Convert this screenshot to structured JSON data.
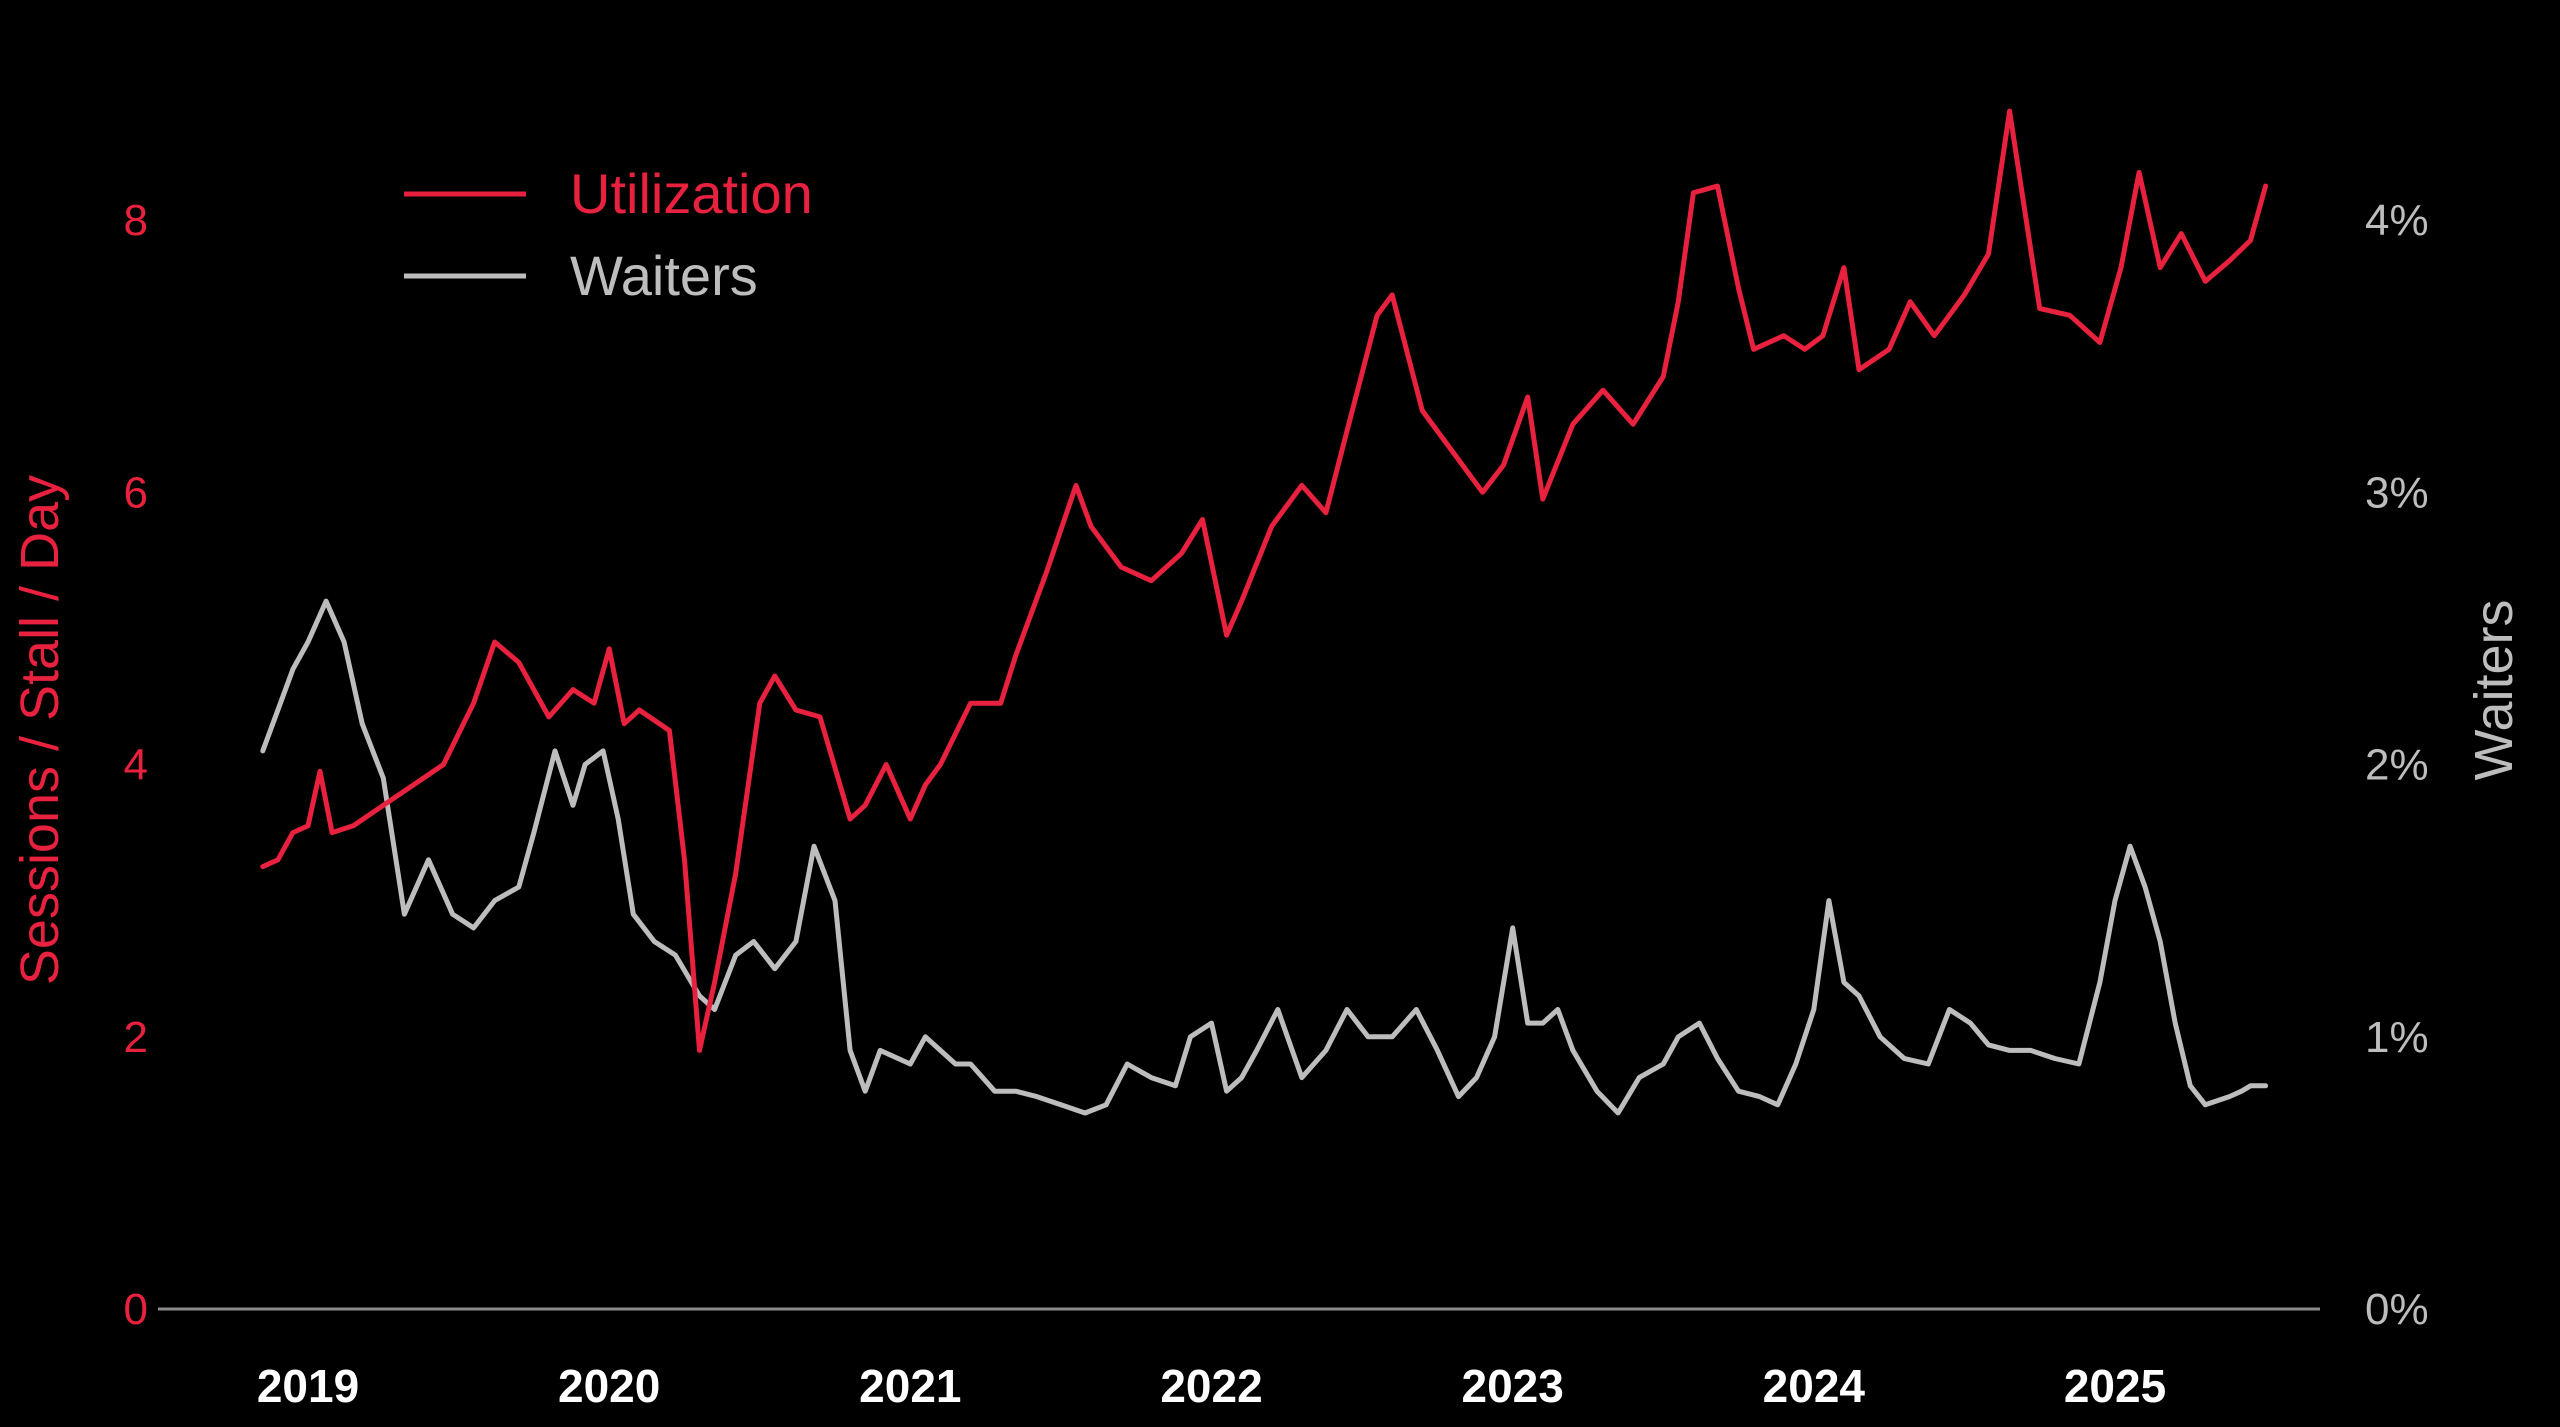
{
  "chart_data": {
    "type": "line",
    "title": "",
    "xlabel": "",
    "ylabel_left": "Sessions / Stall / Day",
    "ylabel_right": "Waiters",
    "ylim_left": [
      0,
      9
    ],
    "ylim_right": [
      0,
      4.5
    ],
    "xlim": [
      2018.55,
      2025.95
    ],
    "y_ticks_left": [
      {
        "value": 0,
        "label": "0"
      },
      {
        "value": 2,
        "label": "2"
      },
      {
        "value": 4,
        "label": "4"
      },
      {
        "value": 6,
        "label": "6"
      },
      {
        "value": 8,
        "label": "8"
      }
    ],
    "y_ticks_right": [
      {
        "value": 0,
        "label": "0%"
      },
      {
        "value": 1,
        "label": "1%"
      },
      {
        "value": 2,
        "label": "2%"
      },
      {
        "value": 3,
        "label": "3%"
      },
      {
        "value": 4,
        "label": "4%"
      }
    ],
    "x_ticks": [
      {
        "value": 2019.0,
        "label": "2019"
      },
      {
        "value": 2020.0,
        "label": "2020"
      },
      {
        "value": 2021.0,
        "label": "2021"
      },
      {
        "value": 2022.0,
        "label": "2022"
      },
      {
        "value": 2023.0,
        "label": "2023"
      },
      {
        "value": 2024.0,
        "label": "2024"
      },
      {
        "value": 2025.0,
        "label": "2025"
      }
    ],
    "grid": false,
    "legend_position": "top-left",
    "colors": {
      "background": "#000000",
      "utilization": "#e8213f",
      "waiters": "#bdbdbd",
      "baseline": "#8a8a8a",
      "x_tick_text": "#ffffff"
    },
    "series": [
      {
        "name": "Utilization",
        "axis": "left",
        "x": [
          2018.85,
          2018.9,
          2018.95,
          2019.0,
          2019.04,
          2019.08,
          2019.15,
          2019.25,
          2019.35,
          2019.45,
          2019.55,
          2019.62,
          2019.7,
          2019.8,
          2019.88,
          2019.95,
          2020.0,
          2020.05,
          2020.1,
          2020.2,
          2020.25,
          2020.3,
          2020.35,
          2020.42,
          2020.5,
          2020.55,
          2020.62,
          2020.7,
          2020.8,
          2020.85,
          2020.92,
          2021.0,
          2021.05,
          2021.1,
          2021.2,
          2021.3,
          2021.35,
          2021.45,
          2021.55,
          2021.6,
          2021.7,
          2021.8,
          2021.9,
          2021.97,
          2022.05,
          2022.1,
          2022.2,
          2022.3,
          2022.38,
          2022.45,
          2022.55,
          2022.6,
          2022.7,
          2022.8,
          2022.9,
          2022.97,
          2023.05,
          2023.1,
          2023.2,
          2023.3,
          2023.4,
          2023.5,
          2023.55,
          2023.6,
          2023.68,
          2023.75,
          2023.8,
          2023.9,
          2023.97,
          2024.03,
          2024.1,
          2024.15,
          2024.25,
          2024.32,
          2024.4,
          2024.5,
          2024.58,
          2024.65,
          2024.75,
          2024.85,
          2024.95,
          2025.02,
          2025.08,
          2025.15,
          2025.22,
          2025.3,
          2025.38,
          2025.45,
          2025.5
        ],
        "y": [
          3.25,
          3.3,
          3.5,
          3.55,
          3.95,
          3.5,
          3.55,
          3.7,
          3.85,
          4.0,
          4.45,
          4.9,
          4.75,
          4.35,
          4.55,
          4.45,
          4.85,
          4.3,
          4.4,
          4.25,
          3.3,
          1.9,
          2.4,
          3.2,
          4.45,
          4.65,
          4.4,
          4.35,
          3.6,
          3.7,
          4.0,
          3.6,
          3.85,
          4.0,
          4.45,
          4.45,
          4.8,
          5.4,
          6.05,
          5.75,
          5.45,
          5.35,
          5.55,
          5.8,
          4.95,
          5.2,
          5.75,
          6.05,
          5.85,
          6.45,
          7.3,
          7.45,
          6.6,
          6.3,
          6.0,
          6.2,
          6.7,
          5.95,
          6.5,
          6.75,
          6.5,
          6.85,
          7.4,
          8.2,
          8.25,
          7.5,
          7.05,
          7.15,
          7.05,
          7.15,
          7.65,
          6.9,
          7.05,
          7.4,
          7.15,
          7.45,
          7.75,
          8.8,
          7.35,
          7.3,
          7.1,
          7.65,
          8.35,
          7.65,
          7.9,
          7.55,
          7.7,
          7.85,
          8.25
        ]
      },
      {
        "name": "Waiters",
        "axis": "right",
        "x": [
          2018.85,
          2018.9,
          2018.95,
          2019.0,
          2019.06,
          2019.12,
          2019.18,
          2019.25,
          2019.32,
          2019.4,
          2019.48,
          2019.55,
          2019.62,
          2019.7,
          2019.75,
          2019.82,
          2019.88,
          2019.92,
          2019.98,
          2020.03,
          2020.08,
          2020.15,
          2020.22,
          2020.3,
          2020.35,
          2020.42,
          2020.48,
          2020.55,
          2020.62,
          2020.68,
          2020.75,
          2020.8,
          2020.85,
          2020.9,
          2021.0,
          2021.05,
          2021.1,
          2021.15,
          2021.2,
          2021.28,
          2021.35,
          2021.42,
          2021.5,
          2021.58,
          2021.65,
          2021.72,
          2021.8,
          2021.88,
          2021.93,
          2022.0,
          2022.05,
          2022.1,
          2022.15,
          2022.22,
          2022.3,
          2022.38,
          2022.45,
          2022.52,
          2022.6,
          2022.68,
          2022.75,
          2022.82,
          2022.88,
          2022.94,
          2023.0,
          2023.05,
          2023.1,
          2023.15,
          2023.2,
          2023.28,
          2023.35,
          2023.42,
          2023.5,
          2023.55,
          2023.62,
          2023.68,
          2023.75,
          2023.82,
          2023.88,
          2023.94,
          2024.0,
          2024.05,
          2024.1,
          2024.15,
          2024.22,
          2024.3,
          2024.38,
          2024.45,
          2024.52,
          2024.58,
          2024.65,
          2024.72,
          2024.8,
          2024.88,
          2024.95,
          2025.0,
          2025.05,
          2025.1,
          2025.15,
          2025.2,
          2025.25,
          2025.3,
          2025.38,
          2025.42,
          2025.45,
          2025.5
        ],
        "y": [
          2.05,
          2.2,
          2.35,
          2.45,
          2.6,
          2.45,
          2.15,
          1.95,
          1.45,
          1.65,
          1.45,
          1.4,
          1.5,
          1.55,
          1.75,
          2.05,
          1.85,
          2.0,
          2.05,
          1.8,
          1.45,
          1.35,
          1.3,
          1.15,
          1.1,
          1.3,
          1.35,
          1.25,
          1.35,
          1.7,
          1.5,
          0.95,
          0.8,
          0.95,
          0.9,
          1.0,
          0.95,
          0.9,
          0.9,
          0.8,
          0.8,
          0.78,
          0.75,
          0.72,
          0.75,
          0.9,
          0.85,
          0.82,
          1.0,
          1.05,
          0.8,
          0.85,
          0.95,
          1.1,
          0.85,
          0.95,
          1.1,
          1.0,
          1.0,
          1.1,
          0.95,
          0.78,
          0.85,
          1.0,
          1.4,
          1.05,
          1.05,
          1.1,
          0.95,
          0.8,
          0.72,
          0.85,
          0.9,
          1.0,
          1.05,
          0.92,
          0.8,
          0.78,
          0.75,
          0.9,
          1.1,
          1.5,
          1.2,
          1.15,
          1.0,
          0.92,
          0.9,
          1.1,
          1.05,
          0.97,
          0.95,
          0.95,
          0.92,
          0.9,
          1.2,
          1.5,
          1.7,
          1.55,
          1.35,
          1.05,
          0.82,
          0.75,
          0.78,
          0.8,
          0.82,
          0.82
        ]
      }
    ]
  }
}
